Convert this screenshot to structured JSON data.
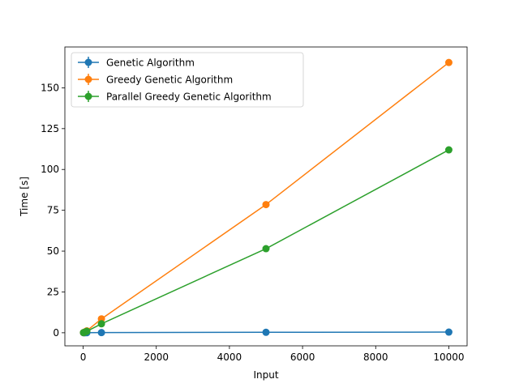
{
  "chart_data": {
    "type": "line",
    "title": "",
    "xlabel": "Input",
    "ylabel": "Time [s]",
    "xlim": [
      -500,
      10500
    ],
    "ylim": [
      -8,
      175
    ],
    "xticks": [
      0,
      2000,
      4000,
      6000,
      8000,
      10000
    ],
    "yticks": [
      0,
      25,
      50,
      75,
      100,
      125,
      150
    ],
    "grid": false,
    "legend_position": "top-left",
    "x": [
      10,
      50,
      100,
      500,
      5000,
      10000
    ],
    "series": [
      {
        "name": "Genetic Algorithm",
        "color": "#1f77b4",
        "values": [
          0.0,
          0.0,
          0.05,
          0.1,
          0.3,
          0.4
        ]
      },
      {
        "name": "Greedy Genetic Algorithm",
        "color": "#ff7f0e",
        "values": [
          0.1,
          0.5,
          1.2,
          8.5,
          78.5,
          165.5
        ]
      },
      {
        "name": "Parallel Greedy Genetic Algorithm",
        "color": "#2ca02c",
        "values": [
          0.1,
          0.4,
          0.9,
          5.5,
          51.5,
          112.0
        ]
      }
    ]
  }
}
